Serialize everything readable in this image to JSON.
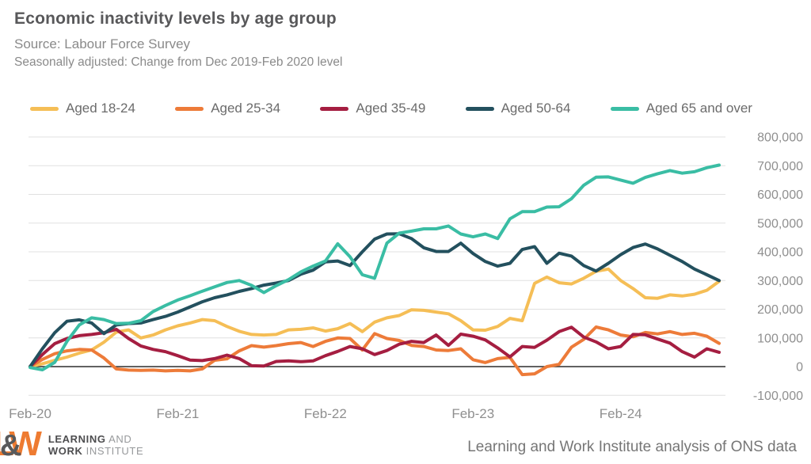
{
  "header": {
    "title": "Economic inactivity levels by age group",
    "subtitle": "Source: Labour Force Survey",
    "note": "Seasonally adjusted: Change from Dec 2019-Feb 2020 level"
  },
  "footer": {
    "logo": {
      "letter_l": "L",
      "letter_amp": "&",
      "letter_w": "W",
      "line1_bold": "LEARNING",
      "line1_light": " AND",
      "line2_bold": "WORK",
      "line2_light": " INSTITUTE"
    },
    "attribution": "Learning and Work Institute analysis of ONS data"
  },
  "colors": {
    "grid": "#e0e0e0",
    "zero_line": "#2d2d2d",
    "tick_label": "#8f8f8f",
    "title_text": "#58585a",
    "subtitle_text": "#8a8a8a",
    "legend_text": "#6b6b6b"
  },
  "chart_data": {
    "type": "line",
    "title": "Economic inactivity levels by age group",
    "subtitle": "Source: Labour Force Survey",
    "annotation": "Seasonally adjusted: Change from Dec 2019-Feb 2020 level",
    "x_unit": "months (3-month rolling periods), Feb-20 to Oct-24",
    "x_tick_labels": [
      "Feb-20",
      "Feb-21",
      "Feb-22",
      "Feb-23",
      "Feb-24"
    ],
    "x_tick_month_indices": [
      0,
      12,
      24,
      36,
      48
    ],
    "n_points": 57,
    "ylim": [
      -100000,
      800000
    ],
    "y_tick_step": 100000,
    "y_tick_labels": [
      "800,000",
      "700,000",
      "600,000",
      "500,000",
      "400,000",
      "300,000",
      "200,000",
      "100,000",
      "0",
      "-100,000"
    ],
    "grid": true,
    "legend_position": "top",
    "series": [
      {
        "name": "Aged 18-24",
        "color": "#f5be56",
        "values": [
          0,
          10000,
          22000,
          33000,
          47000,
          58000,
          85000,
          120000,
          128000,
          100000,
          110000,
          128000,
          142000,
          152000,
          164000,
          160000,
          140000,
          123000,
          112000,
          110000,
          112000,
          128000,
          130000,
          135000,
          124000,
          132000,
          150000,
          122000,
          155000,
          170000,
          178000,
          198000,
          196000,
          190000,
          184000,
          160000,
          128000,
          127000,
          140000,
          168000,
          160000,
          290000,
          312000,
          292000,
          288000,
          308000,
          332000,
          340000,
          300000,
          272000,
          240000,
          238000,
          250000,
          246000,
          252000,
          266000,
          297000
        ]
      },
      {
        "name": "Aged 25-34",
        "color": "#ed7b39",
        "values": [
          0,
          25000,
          45000,
          55000,
          60000,
          58000,
          30000,
          -8000,
          -12000,
          -13000,
          -12000,
          -15000,
          -13000,
          -15000,
          -8000,
          22000,
          27000,
          55000,
          73000,
          68000,
          73000,
          80000,
          84000,
          70000,
          88000,
          100000,
          98000,
          58000,
          115000,
          98000,
          91000,
          74000,
          70000,
          58000,
          56000,
          62000,
          24000,
          14000,
          28000,
          32000,
          -28000,
          -25000,
          0,
          8000,
          68000,
          95000,
          138000,
          128000,
          110000,
          104000,
          119000,
          114000,
          122000,
          112000,
          116000,
          106000,
          81000
        ]
      },
      {
        "name": "Aged 35-49",
        "color": "#a51e41",
        "values": [
          0,
          42000,
          80000,
          98000,
          108000,
          112000,
          118000,
          130000,
          98000,
          72000,
          60000,
          52000,
          38000,
          23000,
          21000,
          28000,
          40000,
          28000,
          3000,
          2000,
          18000,
          20000,
          17000,
          20000,
          38000,
          53000,
          70000,
          62000,
          42000,
          56000,
          78000,
          88000,
          84000,
          110000,
          74000,
          113000,
          106000,
          93000,
          65000,
          34000,
          70000,
          67000,
          92000,
          122000,
          137000,
          103000,
          86000,
          62000,
          70000,
          112000,
          111000,
          96000,
          82000,
          52000,
          33000,
          62000,
          50000
        ]
      },
      {
        "name": "Aged 50-64",
        "color": "#23505e",
        "values": [
          0,
          62000,
          118000,
          158000,
          163000,
          152000,
          115000,
          145000,
          150000,
          152000,
          164000,
          175000,
          190000,
          208000,
          226000,
          240000,
          250000,
          262000,
          272000,
          284000,
          291000,
          300000,
          322000,
          336000,
          365000,
          368000,
          352000,
          400000,
          444000,
          462000,
          463000,
          446000,
          414000,
          401000,
          401000,
          430000,
          394000,
          366000,
          350000,
          360000,
          408000,
          418000,
          360000,
          395000,
          385000,
          352000,
          333000,
          360000,
          390000,
          415000,
          427000,
          410000,
          388000,
          366000,
          340000,
          320000,
          300000
        ]
      },
      {
        "name": "Aged 65 and over",
        "color": "#3abda4",
        "values": [
          -3000,
          -11000,
          15000,
          88000,
          145000,
          170000,
          164000,
          150000,
          151000,
          160000,
          192000,
          213000,
          232000,
          247000,
          263000,
          278000,
          293000,
          300000,
          283000,
          258000,
          282000,
          303000,
          330000,
          350000,
          368000,
          428000,
          383000,
          320000,
          308000,
          430000,
          465000,
          472000,
          480000,
          480000,
          490000,
          462000,
          452000,
          462000,
          446000,
          515000,
          540000,
          540000,
          556000,
          557000,
          585000,
          632000,
          660000,
          661000,
          650000,
          639000,
          659000,
          672000,
          683000,
          674000,
          679000,
          693000,
          702000
        ]
      }
    ]
  }
}
